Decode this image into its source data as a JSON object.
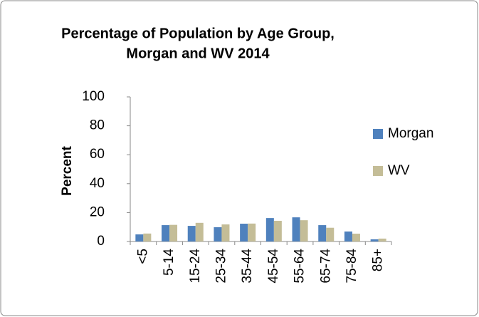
{
  "chart_data": {
    "type": "bar",
    "title": [
      "Percentage of Population by Age Group,",
      "Morgan and WV 2014"
    ],
    "y_label": "Percent",
    "categories": [
      "<5",
      "5-14",
      "15-24",
      "25-34",
      "35-44",
      "45-54",
      "55-64",
      "65-74",
      "75-84",
      "85+"
    ],
    "series": [
      {
        "name": "Morgan",
        "color": "#4f81bd",
        "values": [
          4.9,
          11.3,
          10.8,
          9.9,
          12.3,
          16.2,
          16.7,
          11.3,
          6.9,
          1.5
        ]
      },
      {
        "name": "WV",
        "color": "#c4bd97",
        "values": [
          5.5,
          11.5,
          12.9,
          11.8,
          12.4,
          14.3,
          14.7,
          9.5,
          5.4,
          2.0
        ]
      }
    ],
    "ylim": [
      0,
      100
    ],
    "yticks": [
      0,
      20,
      40,
      60,
      80,
      100
    ],
    "grid": false,
    "legend": "right"
  }
}
